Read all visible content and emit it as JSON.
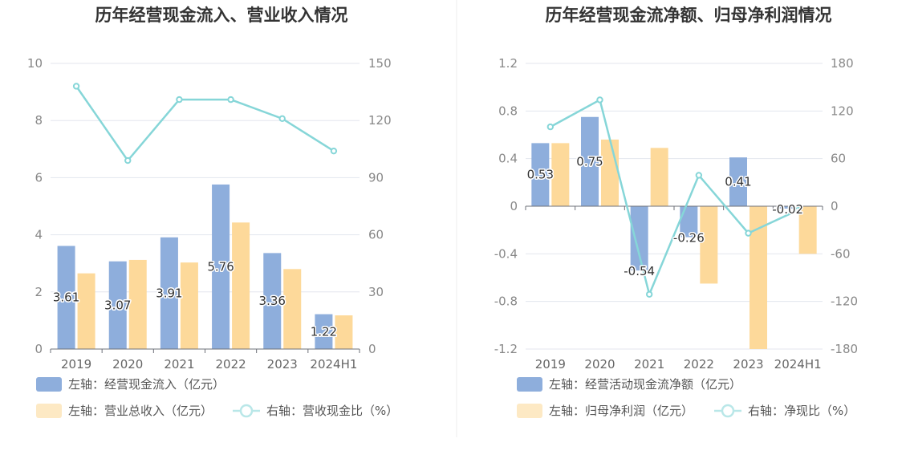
{
  "charts": [
    {
      "title": "历年经营现金流入、营业收入情况",
      "chart_data": {
        "type": "bar",
        "categories": [
          "2019",
          "2020",
          "2021",
          "2022",
          "2023",
          "2024H1"
        ],
        "left_axis": {
          "min": 0,
          "max": 10,
          "ticks": [
            "0",
            "2",
            "4",
            "6",
            "8",
            "10"
          ]
        },
        "right_axis": {
          "min": 0,
          "max": 150,
          "ticks": [
            "0",
            "30",
            "60",
            "90",
            "120",
            "150"
          ]
        },
        "series": [
          {
            "name": "左轴：经营现金流入（亿元）",
            "type": "bar",
            "axis": "left",
            "color": "#8eaedc",
            "values": [
              3.61,
              3.07,
              3.91,
              5.76,
              3.36,
              1.22
            ],
            "labels": [
              "3.61",
              "3.07",
              "3.91",
              "5.76",
              "3.36",
              "1.22"
            ]
          },
          {
            "name": "左轴：营业总收入（亿元）",
            "type": "bar",
            "axis": "left",
            "color": "#fdd99a",
            "values": [
              2.65,
              3.12,
              3.03,
              4.43,
              2.8,
              1.18
            ]
          },
          {
            "name": "右轴：营收现金比（%）",
            "type": "line",
            "axis": "right",
            "color": "#86d6d8",
            "values": [
              138,
              99,
              131,
              131,
              121,
              104
            ]
          }
        ],
        "grid": true,
        "legend": "bottom"
      }
    },
    {
      "title": "历年经营现金流净额、归母净利润情况",
      "chart_data": {
        "type": "bar",
        "categories": [
          "2019",
          "2020",
          "2021",
          "2022",
          "2023",
          "2024H1"
        ],
        "left_axis": {
          "min": -1.2,
          "max": 1.2,
          "ticks": [
            "-1.2",
            "-0.8",
            "-0.4",
            "0",
            "0.4",
            "0.8",
            "1.2"
          ]
        },
        "right_axis": {
          "min": -180,
          "max": 180,
          "ticks": [
            "-180",
            "-120",
            "-60",
            "0",
            "60",
            "120",
            "180"
          ]
        },
        "series": [
          {
            "name": "左轴：经营活动现金流净额（亿元）",
            "type": "bar",
            "axis": "left",
            "color": "#8eaedc",
            "values": [
              0.53,
              0.75,
              -0.54,
              -0.26,
              0.41,
              -0.02
            ],
            "labels": [
              "0.53",
              "0.75",
              "-0.54",
              "-0.26",
              "0.41",
              "-0.02"
            ]
          },
          {
            "name": "左轴：归母净利润（亿元）",
            "type": "bar",
            "axis": "left",
            "color": "#fdd99a",
            "values": [
              0.53,
              0.56,
              0.49,
              -0.65,
              -1.2,
              -0.4
            ]
          },
          {
            "name": "右轴：净现比（%）",
            "type": "line",
            "axis": "right",
            "color": "#86d6d8",
            "values": [
              100,
              134,
              -111,
              39,
              -34,
              -5
            ]
          }
        ],
        "grid": true,
        "legend": "bottom"
      }
    }
  ]
}
